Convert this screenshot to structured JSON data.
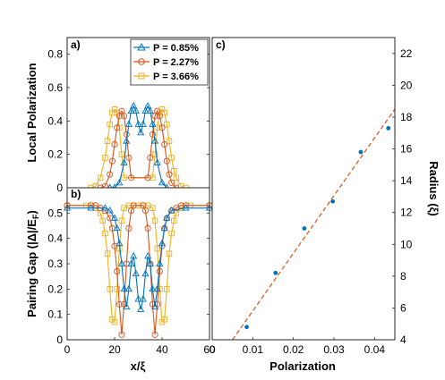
{
  "colors": {
    "blue": "#0072BD",
    "orange": "#D95319",
    "yellow": "#EDB120",
    "axis": "#262626"
  },
  "legend": [
    {
      "label": "P = 0.85%",
      "series": "s1",
      "marker": "triangle"
    },
    {
      "label": "P = 2.27%",
      "series": "s2",
      "marker": "circle"
    },
    {
      "label": "P = 3.66%",
      "series": "s3",
      "marker": "square"
    }
  ],
  "chart_data": [
    {
      "id": "a",
      "panel_label": "a)",
      "type": "line",
      "ylabel": "Local Polarization",
      "xlim": [
        0,
        60
      ],
      "ylim": [
        0,
        0.9
      ],
      "xticks": [
        "0",
        "20",
        "40",
        "60"
      ],
      "yticks": [
        "0",
        "0.2",
        "0.4",
        "0.6",
        "0.8"
      ],
      "series": [
        {
          "name": "P = 0.85%",
          "color": "#0072BD",
          "marker": "triangle",
          "x": [
            18,
            20,
            22,
            24,
            25,
            26,
            27,
            28,
            29,
            30,
            31,
            32,
            33,
            34,
            35,
            36,
            37,
            38,
            40,
            42
          ],
          "y": [
            0,
            0.002,
            0.03,
            0.15,
            0.28,
            0.38,
            0.46,
            0.49,
            0.46,
            0.38,
            0.33,
            0.38,
            0.46,
            0.49,
            0.46,
            0.38,
            0.28,
            0.15,
            0.03,
            0
          ]
        },
        {
          "name": "P = 2.27%",
          "color": "#D95319",
          "marker": "circle",
          "x": [
            14,
            16,
            18,
            19,
            20,
            21,
            22,
            23,
            24,
            25,
            26,
            27,
            34,
            35,
            36,
            37,
            38,
            39,
            40,
            41,
            42,
            43,
            44,
            46
          ],
          "y": [
            0,
            0.01,
            0.08,
            0.16,
            0.26,
            0.36,
            0.43,
            0.46,
            0.43,
            0.32,
            0.18,
            0.06,
            0.06,
            0.18,
            0.32,
            0.43,
            0.46,
            0.43,
            0.36,
            0.26,
            0.16,
            0.08,
            0.03,
            0
          ]
        },
        {
          "name": "P = 3.66%",
          "color": "#EDB120",
          "marker": "square",
          "x": [
            10,
            12,
            14,
            16,
            17,
            18,
            19,
            20,
            21,
            22,
            23,
            24,
            36,
            37,
            38,
            39,
            40,
            41,
            42,
            43,
            44,
            45,
            46,
            48,
            50
          ],
          "y": [
            0,
            0.01,
            0.06,
            0.18,
            0.28,
            0.38,
            0.45,
            0.47,
            0.45,
            0.36,
            0.2,
            0.06,
            0.06,
            0.2,
            0.36,
            0.45,
            0.47,
            0.45,
            0.38,
            0.28,
            0.18,
            0.1,
            0.06,
            0.01,
            0
          ]
        }
      ]
    },
    {
      "id": "b",
      "panel_label": "b)",
      "type": "line",
      "xlabel": "x/ξ",
      "ylabel": "Pairing Gap (|Δ|/E",
      "ylabel_sub": "F",
      "ylabel_end": ")",
      "xlim": [
        0,
        60
      ],
      "ylim": [
        0,
        0.6
      ],
      "xticks": [
        "0",
        "20",
        "40",
        "60"
      ],
      "yticks": [
        "0",
        "0.1",
        "0.2",
        "0.3",
        "0.4",
        "0.5"
      ],
      "series": [
        {
          "name": "P = 0.85%",
          "color": "#0072BD",
          "marker": "triangle",
          "x": [
            0,
            10,
            16,
            18,
            20,
            21,
            22,
            23,
            24,
            25,
            26,
            27,
            28,
            29,
            30,
            31,
            32,
            33,
            34,
            35,
            36,
            37,
            38,
            39,
            40,
            41,
            42,
            44,
            50,
            60
          ],
          "y": [
            0.52,
            0.52,
            0.52,
            0.51,
            0.48,
            0.44,
            0.38,
            0.3,
            0.2,
            0.13,
            0.2,
            0.3,
            0.33,
            0.26,
            0.16,
            0.12,
            0.16,
            0.26,
            0.33,
            0.3,
            0.2,
            0.13,
            0.2,
            0.3,
            0.38,
            0.44,
            0.48,
            0.51,
            0.52,
            0.52
          ]
        },
        {
          "name": "P = 2.27%",
          "color": "#D95319",
          "marker": "circle",
          "x": [
            0,
            10,
            12,
            14,
            16,
            18,
            19,
            20,
            21,
            22,
            23,
            24,
            25,
            26,
            27,
            28,
            32,
            33,
            34,
            35,
            36,
            37,
            38,
            39,
            40,
            41,
            42,
            44,
            46,
            48,
            50,
            60
          ],
          "y": [
            0.53,
            0.53,
            0.53,
            0.52,
            0.51,
            0.48,
            0.44,
            0.37,
            0.27,
            0.14,
            0.02,
            0.14,
            0.3,
            0.44,
            0.51,
            0.53,
            0.53,
            0.51,
            0.44,
            0.3,
            0.14,
            0.02,
            0.14,
            0.27,
            0.37,
            0.44,
            0.48,
            0.51,
            0.52,
            0.53,
            0.53,
            0.53
          ]
        },
        {
          "name": "P = 3.66%",
          "color": "#EDB120",
          "marker": "square",
          "x": [
            0,
            8,
            10,
            12,
            14,
            15,
            16,
            17,
            18,
            19,
            20,
            21,
            22,
            23,
            24,
            26,
            28,
            30,
            32,
            34,
            36,
            37,
            38,
            39,
            40,
            41,
            42,
            43,
            44,
            45,
            46,
            48,
            50,
            52,
            60
          ],
          "y": [
            0.53,
            0.53,
            0.53,
            0.52,
            0.5,
            0.47,
            0.42,
            0.34,
            0.2,
            0.08,
            0.07,
            0.2,
            0.36,
            0.47,
            0.52,
            0.53,
            0.53,
            0.53,
            0.53,
            0.53,
            0.52,
            0.47,
            0.36,
            0.2,
            0.07,
            0.08,
            0.2,
            0.34,
            0.42,
            0.47,
            0.5,
            0.52,
            0.53,
            0.53,
            0.53
          ]
        }
      ]
    },
    {
      "id": "c",
      "panel_label": "c)",
      "type": "scatter",
      "xlabel": "Polarization",
      "ylabel": "Radius (ξ)",
      "xlim": [
        0,
        0.045
      ],
      "ylim": [
        4,
        23
      ],
      "xticks": [
        "0",
        "0.01",
        "0.02",
        "0.03",
        "0.04"
      ],
      "yticks": [
        "4",
        "6",
        "8",
        "10",
        "12",
        "14",
        "16",
        "18",
        "20",
        "22"
      ],
      "points": [
        [
          0.0085,
          4.8
        ],
        [
          0.0156,
          8.2
        ],
        [
          0.0227,
          11.0
        ],
        [
          0.0297,
          12.7
        ],
        [
          0.0366,
          15.8
        ],
        [
          0.0434,
          17.3
        ]
      ],
      "fit_line": {
        "x": [
          0.005,
          0.045
        ],
        "y": [
          4.0,
          18.5
        ],
        "style": "dashed",
        "color": "#D95319"
      }
    }
  ]
}
